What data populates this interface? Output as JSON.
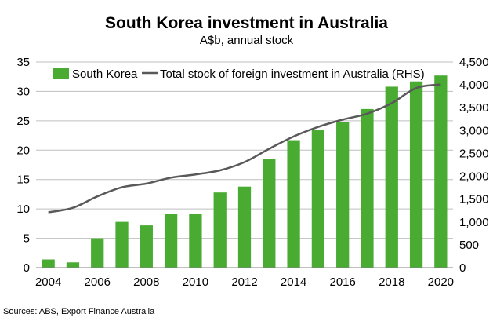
{
  "chart_data": {
    "type": "bar",
    "title": "South Korea investment in Australia",
    "subtitle": "A$b, annual stock",
    "source": "Sources: ABS, Export Finance Australia",
    "categories": [
      "2004",
      "2005",
      "2006",
      "2007",
      "2008",
      "2009",
      "2010",
      "2011",
      "2012",
      "2013",
      "2014",
      "2015",
      "2016",
      "2017",
      "2018",
      "2019",
      "2020"
    ],
    "x_tick_labels": [
      "2004",
      "2006",
      "2008",
      "2010",
      "2012",
      "2014",
      "2016",
      "2018",
      "2020"
    ],
    "y_left": {
      "ylim": [
        0,
        35
      ],
      "ticks": [
        "0",
        "5",
        "10",
        "15",
        "20",
        "25",
        "30",
        "35"
      ]
    },
    "y_right": {
      "ylim": [
        0,
        4500
      ],
      "ticks": [
        "0",
        "500",
        "1,000",
        "1,500",
        "2,000",
        "2,500",
        "3,000",
        "3,500",
        "4,000",
        "4,500"
      ]
    },
    "grid": true,
    "legend_position": "top",
    "series": [
      {
        "name": "South Korea",
        "type": "bar",
        "axis": "left",
        "color": "#4aab32",
        "values": [
          1.4,
          0.9,
          5.0,
          7.8,
          7.2,
          9.2,
          9.2,
          12.8,
          13.8,
          18.5,
          21.7,
          23.4,
          24.8,
          27.0,
          30.8,
          31.7,
          32.7
        ]
      },
      {
        "name": "Total stock of foreign investment in Australia (RHS)",
        "type": "line",
        "axis": "right",
        "color": "#595959",
        "values": [
          1210,
          1310,
          1560,
          1760,
          1840,
          1970,
          2040,
          2130,
          2310,
          2600,
          2870,
          3080,
          3240,
          3370,
          3600,
          3930,
          4010
        ]
      }
    ]
  }
}
